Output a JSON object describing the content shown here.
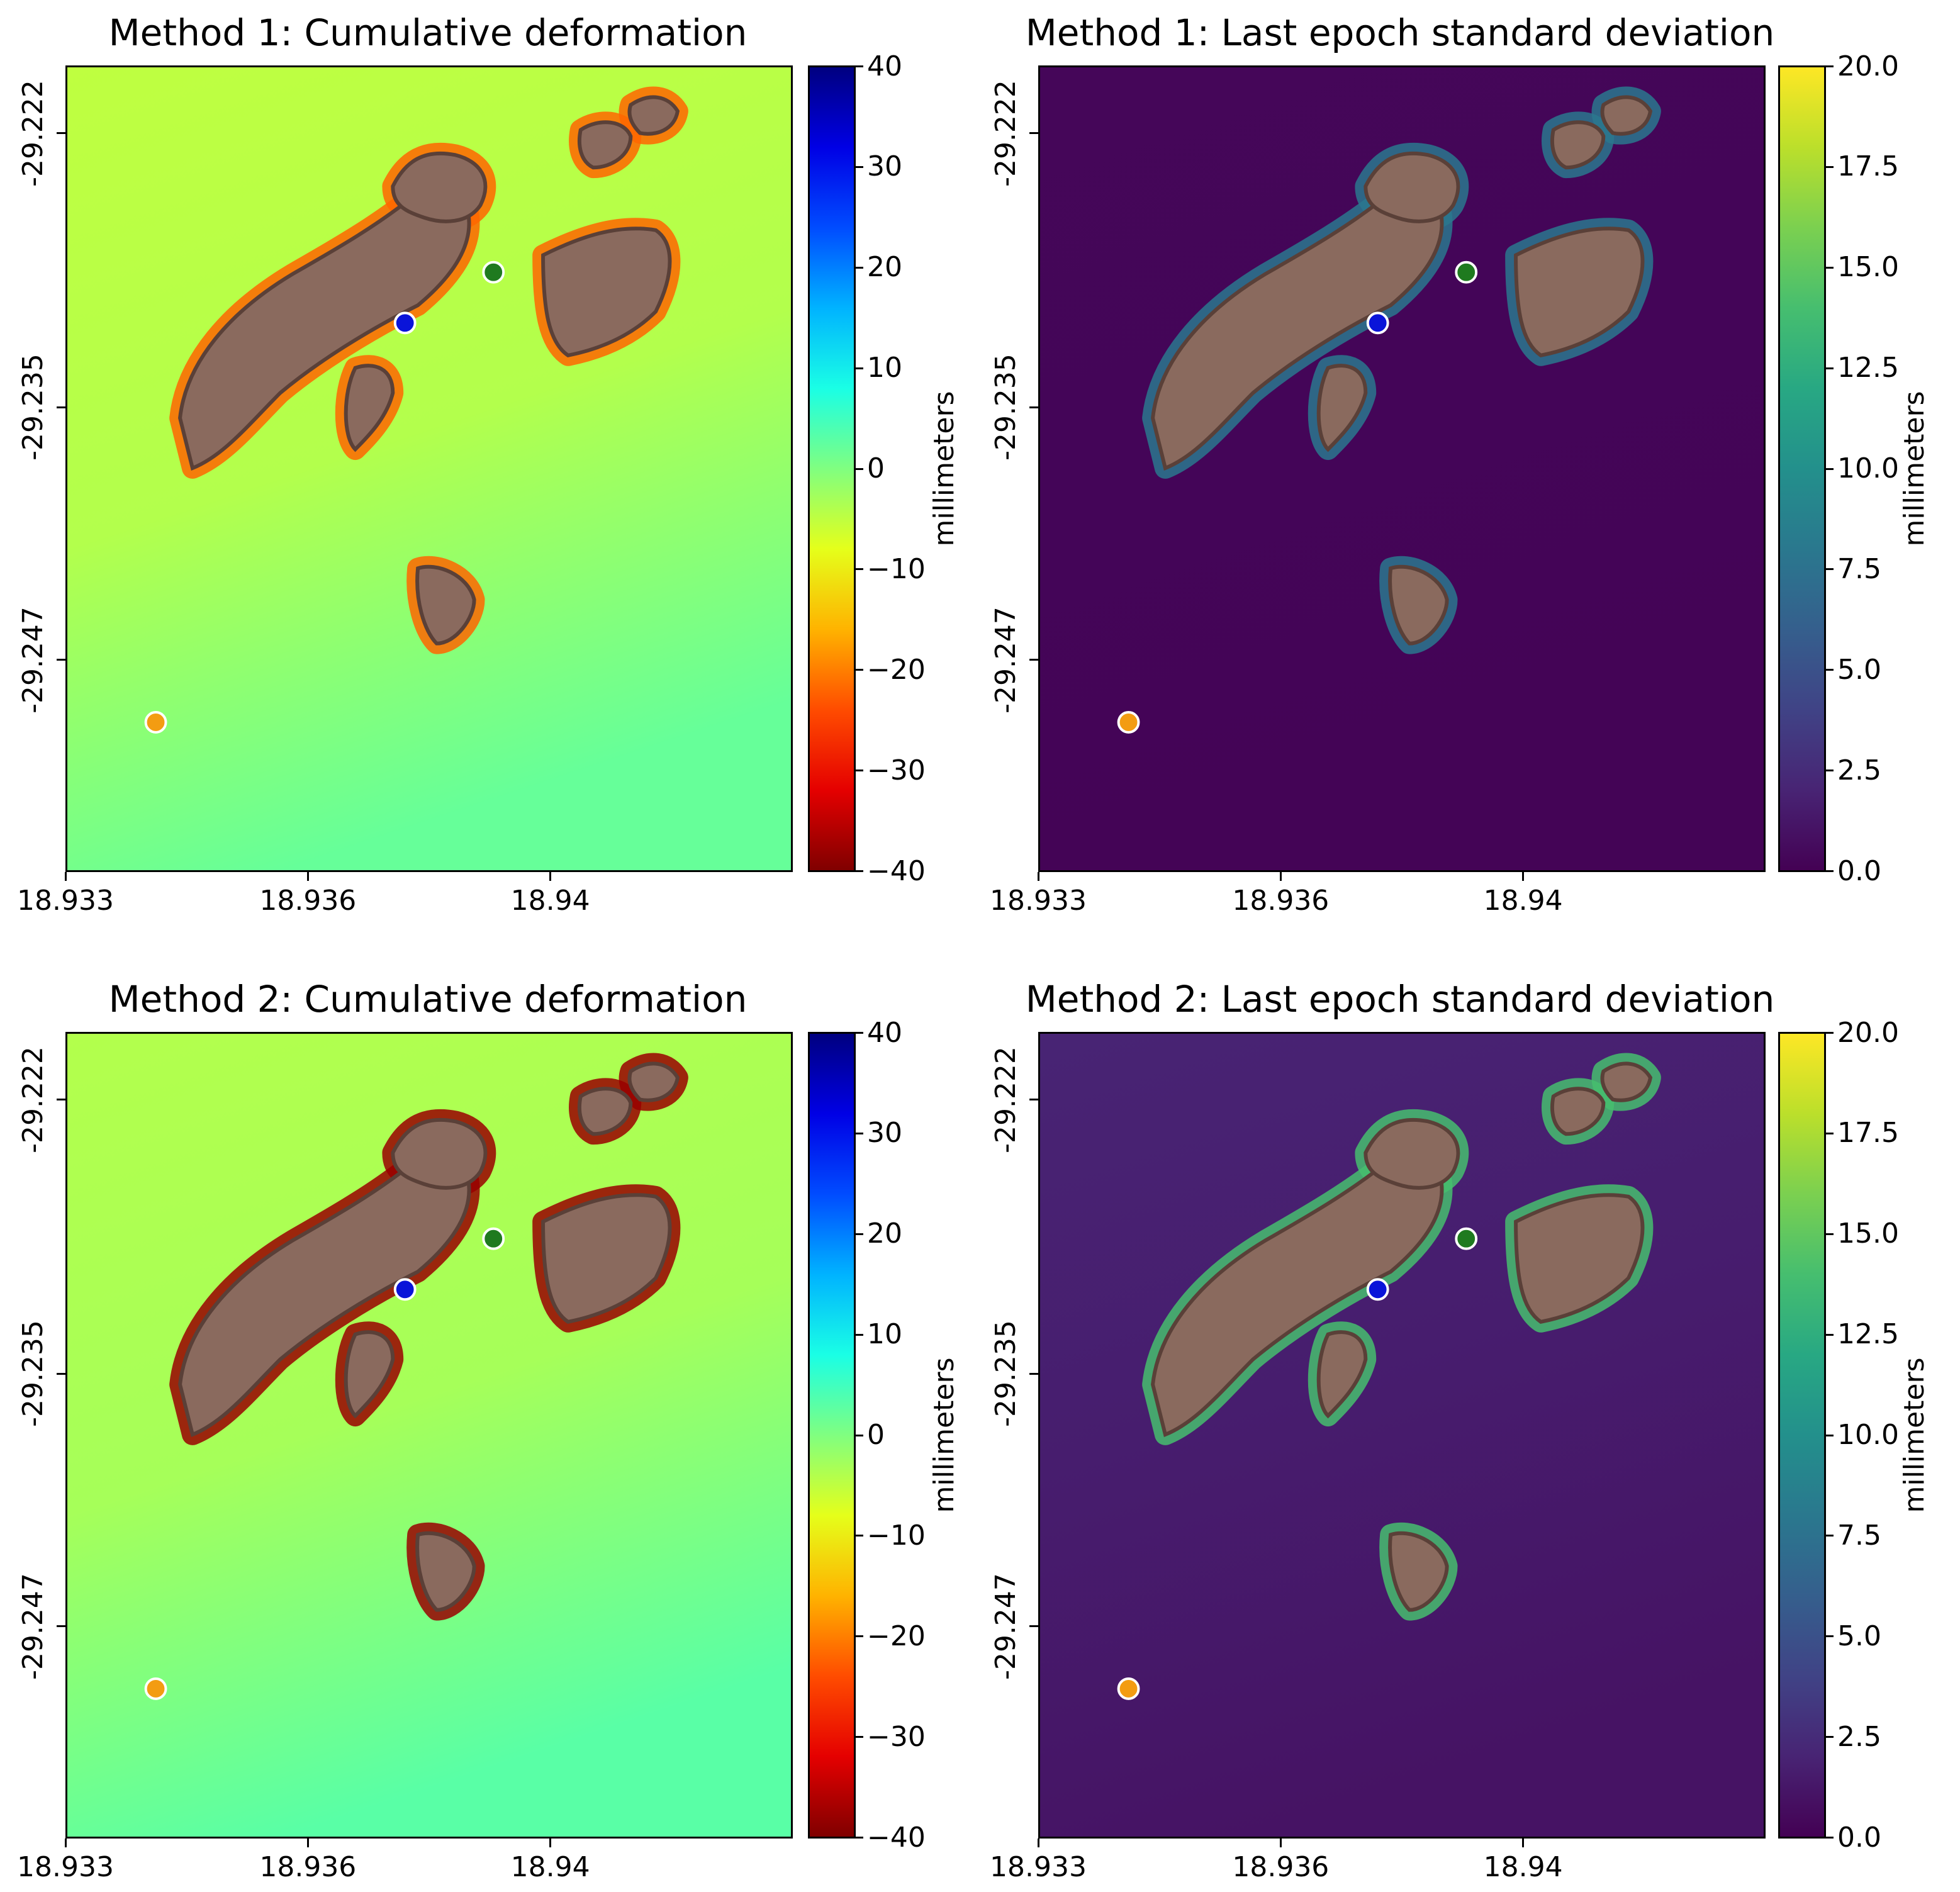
{
  "chart_data": [
    {
      "type": "heatmap",
      "title": "Method 1: Cumulative deformation",
      "colormap": "jet_r",
      "xticks": [
        "18.933",
        "18.936",
        "18.94"
      ],
      "yticks": [
        "-29.222",
        "-29.235",
        "-29.247"
      ],
      "colorbar": {
        "label": "millimeters",
        "ticks": [
          "40",
          "30",
          "20",
          "10",
          "0",
          "−10",
          "−20",
          "−30",
          "−40"
        ],
        "range": [
          -40,
          40
        ]
      },
      "background_value": -6,
      "points": [
        {
          "color": "#1f7a1f",
          "x": 18.9383,
          "y": -29.2287
        },
        {
          "color": "#0a14d9",
          "x": 18.9372,
          "y": -29.2311
        },
        {
          "color": "#f39c12",
          "x": 18.9341,
          "y": -29.25
        }
      ]
    },
    {
      "type": "heatmap",
      "title": "Method 1: Last epoch standard deviation",
      "colormap": "viridis",
      "xticks": [
        "18.933",
        "18.936",
        "18.94"
      ],
      "yticks": [
        "-29.222",
        "-29.235",
        "-29.247"
      ],
      "colorbar": {
        "label": "millimeters",
        "ticks": [
          "20.0",
          "17.5",
          "15.0",
          "12.5",
          "10.0",
          "7.5",
          "5.0",
          "2.5",
          "0.0"
        ],
        "range": [
          0,
          20
        ]
      },
      "background_value": 0.3,
      "points": [
        {
          "color": "#1f7a1f",
          "x": 18.9383,
          "y": -29.2287
        },
        {
          "color": "#0a14d9",
          "x": 18.9372,
          "y": -29.2311
        },
        {
          "color": "#f39c12",
          "x": 18.9341,
          "y": -29.25
        }
      ]
    },
    {
      "type": "heatmap",
      "title": "Method 2: Cumulative deformation",
      "colormap": "jet_r",
      "xticks": [
        "18.933",
        "18.936",
        "18.94"
      ],
      "yticks": [
        "-29.222",
        "-29.235",
        "-29.247"
      ],
      "colorbar": {
        "label": "millimeters",
        "ticks": [
          "40",
          "30",
          "20",
          "10",
          "0",
          "−10",
          "−20",
          "−30",
          "−40"
        ],
        "range": [
          -40,
          40
        ]
      },
      "background_value": -5,
      "points": [
        {
          "color": "#1f7a1f",
          "x": 18.9383,
          "y": -29.2287
        },
        {
          "color": "#0a14d9",
          "x": 18.9372,
          "y": -29.2311
        },
        {
          "color": "#f39c12",
          "x": 18.9341,
          "y": -29.25
        }
      ]
    },
    {
      "type": "heatmap",
      "title": "Method 2: Last epoch standard deviation",
      "colormap": "viridis",
      "xticks": [
        "18.933",
        "18.936",
        "18.94"
      ],
      "yticks": [
        "-29.222",
        "-29.235",
        "-29.247"
      ],
      "colorbar": {
        "label": "millimeters",
        "ticks": [
          "20.0",
          "17.5",
          "15.0",
          "12.5",
          "10.0",
          "7.5",
          "5.0",
          "2.5",
          "0.0"
        ],
        "range": [
          0,
          20
        ]
      },
      "background_value": 2,
      "points": [
        {
          "color": "#1f7a1f",
          "x": 18.9383,
          "y": -29.2287
        },
        {
          "color": "#0a14d9",
          "x": 18.9372,
          "y": -29.2311
        },
        {
          "color": "#f39c12",
          "x": 18.9341,
          "y": -29.25
        }
      ]
    }
  ]
}
